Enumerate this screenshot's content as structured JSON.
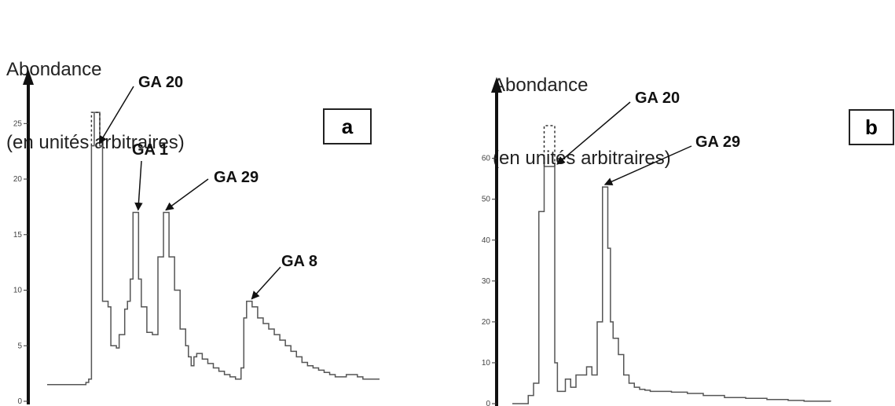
{
  "chart_data": [
    {
      "type": "line",
      "panel_label": "a",
      "ylabel_lines": [
        "Abondance",
        "(en unités arbitraires)"
      ],
      "xlabel": "",
      "title": "",
      "yticks": [
        0,
        5,
        10,
        15,
        20,
        25
      ],
      "ylim": [
        0,
        27
      ],
      "x_ticks_shown": false,
      "clipped_peak_dashed": true,
      "series": [
        {
          "x": [
            0,
            6,
            7,
            7.5,
            8,
            8.5,
            9,
            9.5,
            10,
            10.5,
            11,
            11.5,
            12,
            12.5,
            13,
            14,
            14.5,
            15,
            15.5,
            16,
            16.5,
            17,
            18,
            19,
            20,
            21,
            22,
            23,
            24,
            25,
            25.5,
            26,
            26.5,
            27,
            28,
            29,
            30,
            31,
            32,
            33,
            34,
            35,
            35.5,
            36,
            36.5,
            37,
            38,
            39,
            40,
            41,
            42,
            43,
            44,
            45,
            46,
            47,
            48,
            49,
            50,
            51,
            52,
            53,
            54,
            55,
            56,
            57,
            58,
            60
          ],
          "y": [
            1.5,
            1.5,
            1.7,
            2,
            23,
            26,
            26,
            23,
            9,
            9,
            8.5,
            5,
            5,
            4.8,
            6,
            8.3,
            9,
            11,
            17,
            17,
            11,
            8.5,
            6.2,
            6,
            13,
            17,
            13,
            10,
            6.5,
            5,
            4,
            3.2,
            4,
            4.3,
            3.8,
            3.4,
            3,
            2.7,
            2.4,
            2.2,
            2,
            3,
            7.5,
            9,
            9,
            8.5,
            7.5,
            7,
            6.5,
            6,
            5.5,
            5,
            4.5,
            4,
            3.5,
            3.2,
            3,
            2.8,
            2.6,
            2.4,
            2.2,
            2.2,
            2.4,
            2.4,
            2.2,
            2,
            2,
            2
          ]
        }
      ],
      "annotations": [
        {
          "text": "GA 20",
          "x": 9,
          "y": 23
        },
        {
          "text": "GA 1",
          "x": 16,
          "y": 17
        },
        {
          "text": "GA 29",
          "x": 21,
          "y": 17
        },
        {
          "text": "GA 8",
          "x": 36.5,
          "y": 9
        }
      ]
    },
    {
      "type": "line",
      "panel_label": "b",
      "ylabel_lines": [
        "Abondance",
        "(en unités arbitraires)"
      ],
      "xlabel": "",
      "title": "",
      "yticks": [
        0,
        10,
        20,
        30,
        40,
        50,
        60
      ],
      "ylim": [
        0,
        68
      ],
      "x_ticks_shown": false,
      "clipped_peak_dashed": true,
      "series": [
        {
          "x": [
            0,
            2,
            3,
            4,
            5,
            6,
            6.5,
            7,
            8,
            8.5,
            9,
            10,
            11,
            12,
            13,
            14,
            15,
            16,
            17,
            18,
            18.5,
            19,
            20,
            21,
            22,
            23,
            24,
            25,
            26,
            28,
            30,
            33,
            36,
            40,
            44,
            48,
            52,
            55,
            57,
            60
          ],
          "y": [
            0,
            0,
            2,
            5,
            47,
            58,
            58,
            58,
            10,
            3,
            3,
            6,
            4,
            7,
            7,
            9,
            7,
            20,
            53,
            38,
            20,
            16,
            12,
            7,
            5,
            4,
            3.5,
            3.3,
            3,
            3,
            2.8,
            2.5,
            2,
            1.5,
            1.3,
            1,
            0.8,
            0.6,
            0.6,
            0.5
          ]
        }
      ],
      "annotations": [
        {
          "text": "GA 20",
          "x": 8,
          "y": 58
        },
        {
          "text": "GA 29",
          "x": 17,
          "y": 53
        }
      ]
    }
  ]
}
